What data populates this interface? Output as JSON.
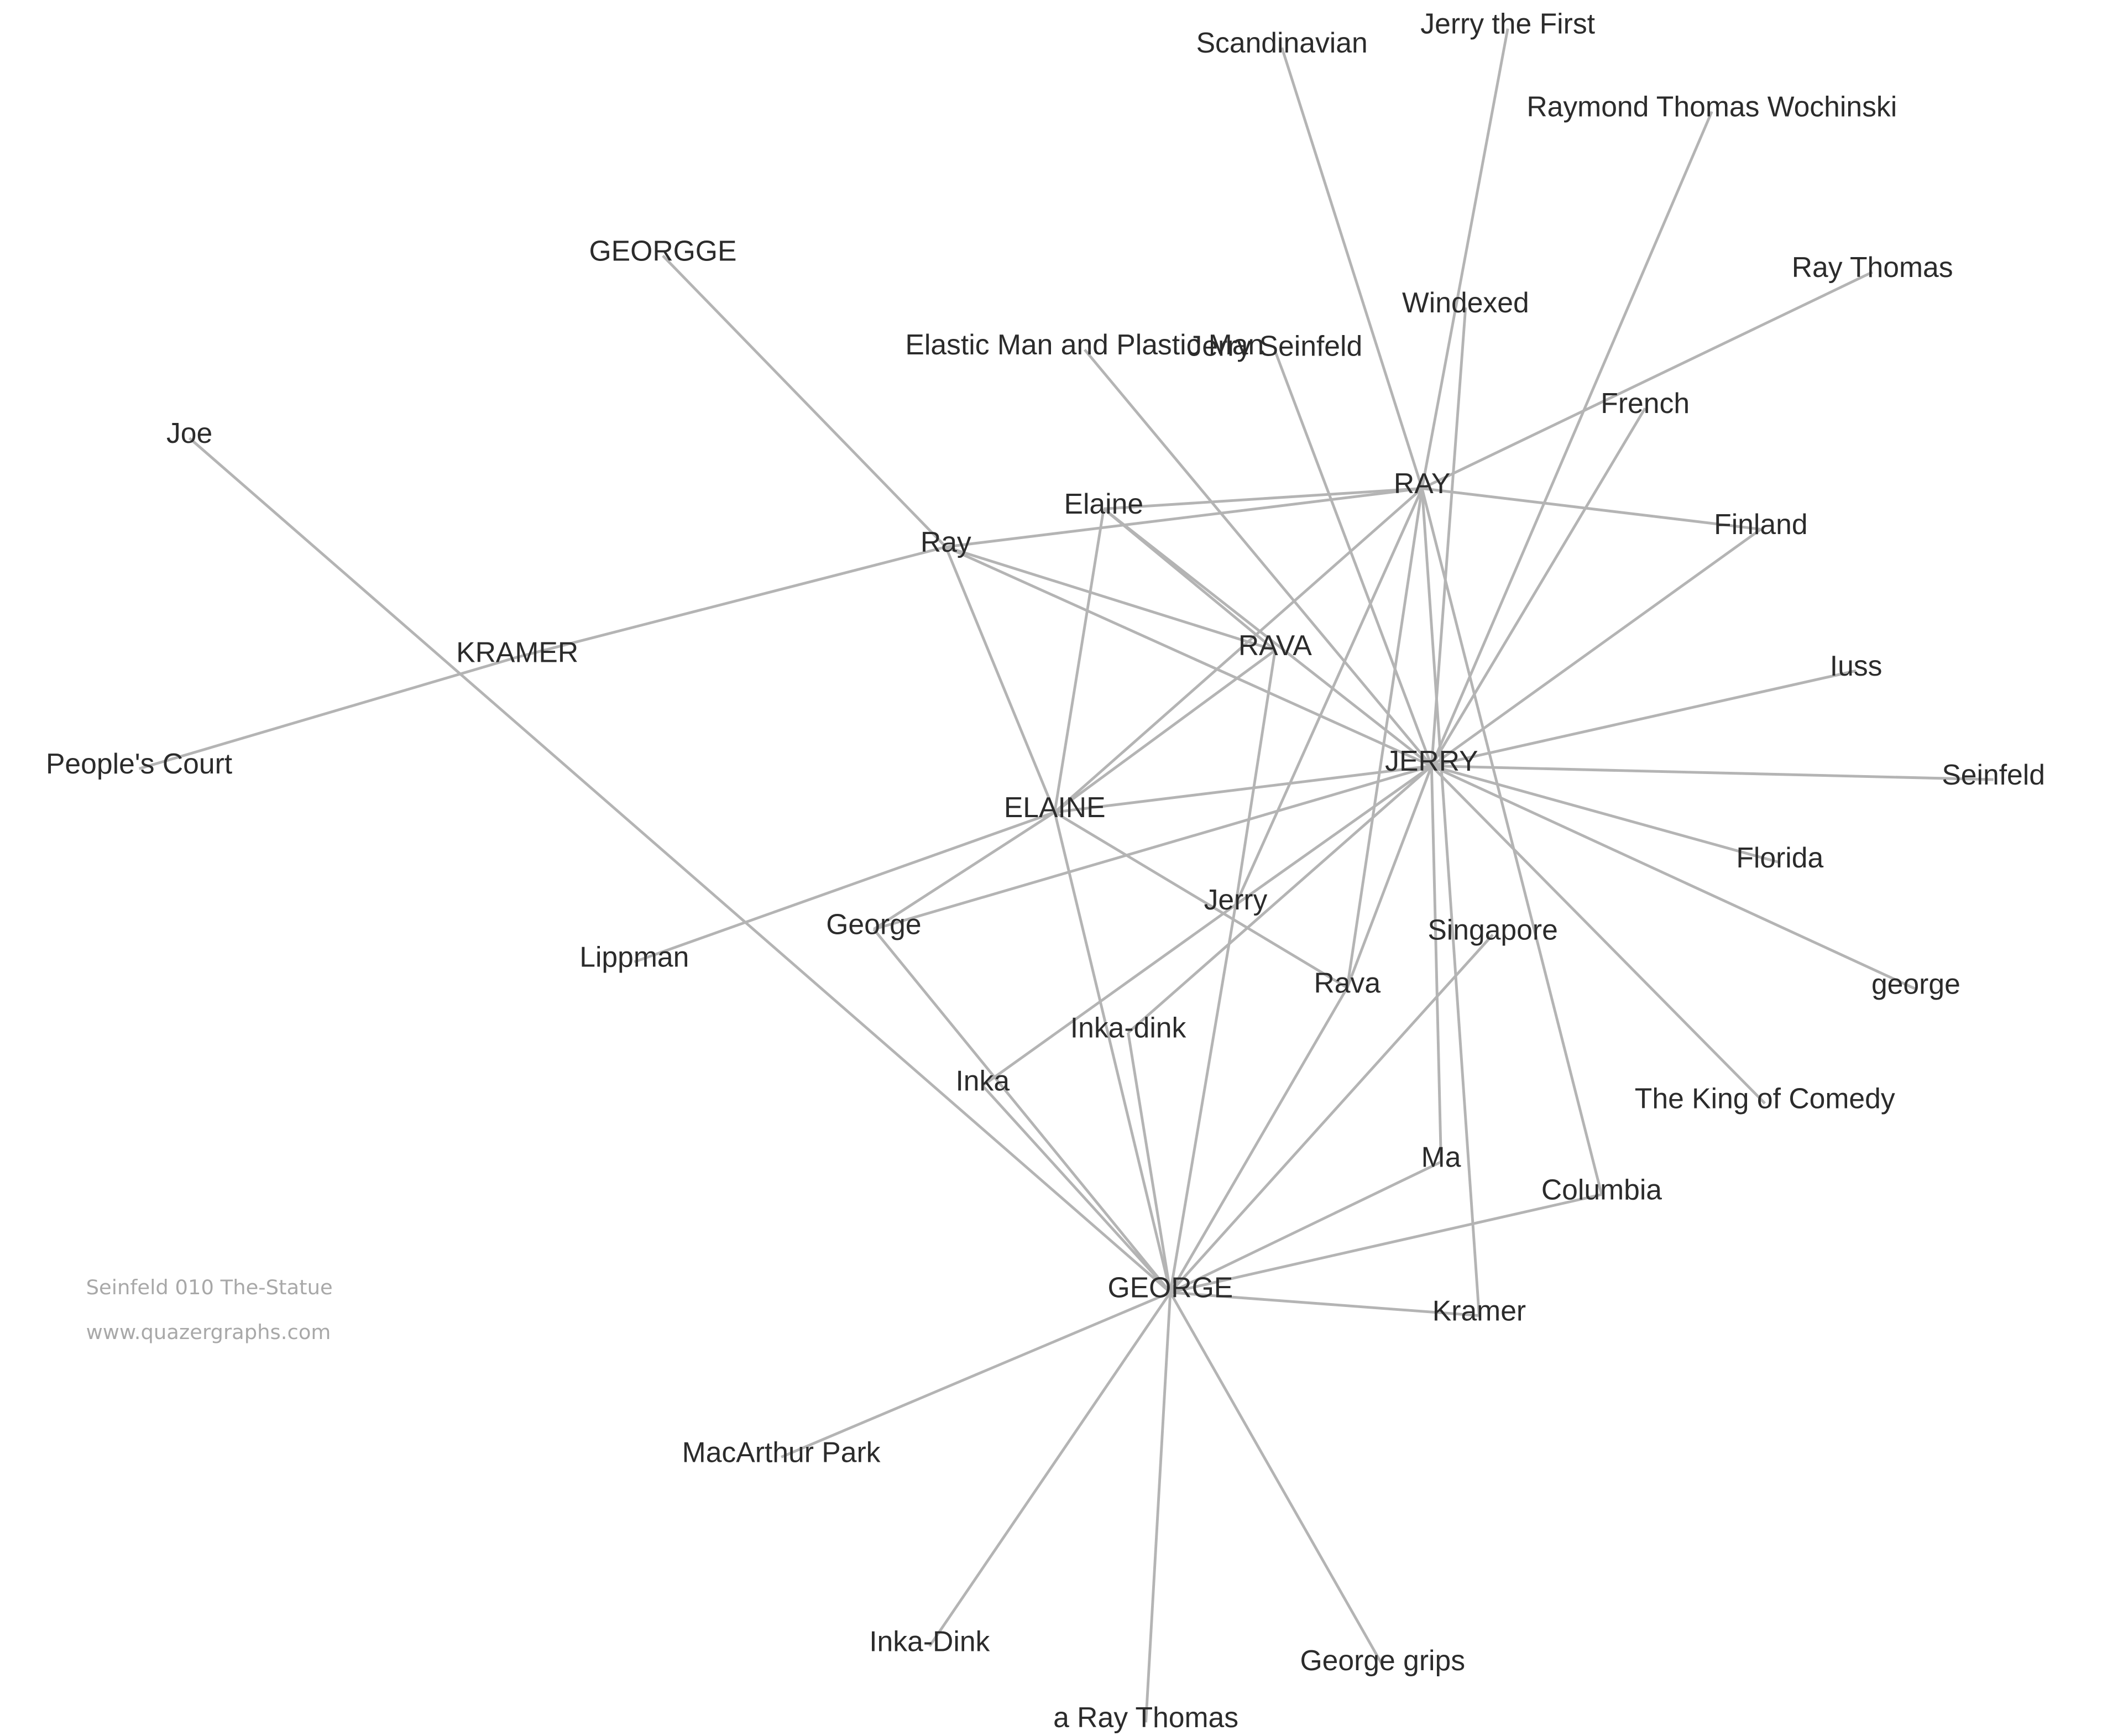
{
  "nodes": [
    {
      "label": "Scandinavian"
    },
    {
      "label": "Jerry the First"
    },
    {
      "label": "Raymond Thomas Wochinski"
    },
    {
      "label": "Ray Thomas"
    },
    {
      "label": "Windexed"
    },
    {
      "label": "GEORGGE"
    },
    {
      "label": "Elastic Man and Plastic Man"
    },
    {
      "label": "Jerry Seinfeld"
    },
    {
      "label": "French"
    },
    {
      "label": "RAY"
    },
    {
      "label": "Joe"
    },
    {
      "label": "Elaine"
    },
    {
      "label": "Ray"
    },
    {
      "label": "Finland"
    },
    {
      "label": "KRAMER"
    },
    {
      "label": "RAVA"
    },
    {
      "label": "Iuss"
    },
    {
      "label": "JERRY"
    },
    {
      "label": "Seinfeld"
    },
    {
      "label": "People's Court"
    },
    {
      "label": "ELAINE"
    },
    {
      "label": "Florida"
    },
    {
      "label": "Jerry"
    },
    {
      "label": "George"
    },
    {
      "label": "Singapore"
    },
    {
      "label": "Lippman"
    },
    {
      "label": "Rava"
    },
    {
      "label": "george"
    },
    {
      "label": "Inka-dink"
    },
    {
      "label": "Inka"
    },
    {
      "label": "The King of Comedy"
    },
    {
      "label": "Ma"
    },
    {
      "label": "Columbia"
    },
    {
      "label": "GEORGE"
    },
    {
      "label": "Kramer"
    },
    {
      "label": "MacArthur Park"
    },
    {
      "label": "Inka-Dink"
    },
    {
      "label": "George grips"
    },
    {
      "label": "a Ray Thomas"
    }
  ],
  "watermark": {
    "title": "Seinfeld 010 The-Statue",
    "url": "www.quazergraphs.com"
  }
}
